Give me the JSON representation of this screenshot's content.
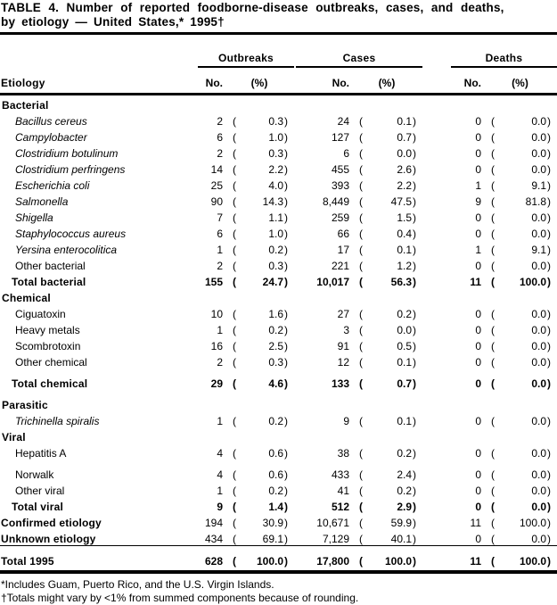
{
  "title": {
    "line1": "TABLE 4. Number of reported foodborne-disease outbreaks, cases, and deaths,",
    "line2": "by etiology — United States,* 1995†"
  },
  "table": {
    "etiology_header": "Etiology",
    "groups": [
      {
        "label": "Outbreaks"
      },
      {
        "label": "Cases"
      },
      {
        "label": "Deaths"
      }
    ],
    "subheaders": {
      "no": "No.",
      "pct": "(%)"
    },
    "rows": [
      {
        "type": "section",
        "label": "Bacterial"
      },
      {
        "type": "item",
        "italic": true,
        "label": "Bacillus cereus",
        "cells": [
          "2",
          "0.3",
          "24",
          "0.1",
          "0",
          "0.0"
        ]
      },
      {
        "type": "item",
        "italic": true,
        "label": "Campylobacter",
        "cells": [
          "6",
          "1.0",
          "127",
          "0.7",
          "0",
          "0.0"
        ]
      },
      {
        "type": "item",
        "italic": true,
        "label": "Clostridium botulinum",
        "cells": [
          "2",
          "0.3",
          "6",
          "0.0",
          "0",
          "0.0"
        ]
      },
      {
        "type": "item",
        "italic": true,
        "label": "Clostridium perfringens",
        "cells": [
          "14",
          "2.2",
          "455",
          "2.6",
          "0",
          "0.0"
        ]
      },
      {
        "type": "item",
        "italic": true,
        "label": "Escherichia coli",
        "cells": [
          "25",
          "4.0",
          "393",
          "2.2",
          "1",
          "9.1"
        ]
      },
      {
        "type": "item",
        "italic": true,
        "label": "Salmonella",
        "cells": [
          "90",
          "14.3",
          "8,449",
          "47.5",
          "9",
          "81.8"
        ]
      },
      {
        "type": "item",
        "italic": true,
        "label": "Shigella",
        "cells": [
          "7",
          "1.1",
          "259",
          "1.5",
          "0",
          "0.0"
        ]
      },
      {
        "type": "item",
        "italic": true,
        "label": "Staphylococcus aureus",
        "cells": [
          "6",
          "1.0",
          "66",
          "0.4",
          "0",
          "0.0"
        ]
      },
      {
        "type": "item",
        "italic": true,
        "label": "Yersina enterocolitica",
        "cells": [
          "1",
          "0.2",
          "17",
          "0.1",
          "1",
          "9.1"
        ]
      },
      {
        "type": "item",
        "label": "Other bacterial",
        "cells": [
          "2",
          "0.3",
          "221",
          "1.2",
          "0",
          "0.0"
        ]
      },
      {
        "type": "total",
        "label": "Total bacterial",
        "cells": [
          "155",
          "24.7",
          "10,017",
          "56.3",
          "11",
          "100.0"
        ]
      },
      {
        "type": "section",
        "label": "Chemical"
      },
      {
        "type": "item",
        "label": "Ciguatoxin",
        "cells": [
          "10",
          "1.6",
          "27",
          "0.2",
          "0",
          "0.0"
        ]
      },
      {
        "type": "item",
        "label": "Heavy metals",
        "cells": [
          "1",
          "0.2",
          "3",
          "0.0",
          "0",
          "0.0"
        ]
      },
      {
        "type": "item",
        "label": "Scombrotoxin",
        "cells": [
          "16",
          "2.5",
          "91",
          "0.5",
          "0",
          "0.0"
        ]
      },
      {
        "type": "item",
        "label": "Other chemical",
        "cells": [
          "2",
          "0.3",
          "12",
          "0.1",
          "0",
          "0.0"
        ]
      },
      {
        "type": "total",
        "gap": true,
        "label": "Total chemical",
        "cells": [
          "29",
          "4.6",
          "133",
          "0.7",
          "0",
          "0.0"
        ]
      },
      {
        "type": "section",
        "gap": true,
        "label": "Parasitic"
      },
      {
        "type": "item",
        "italic": true,
        "label": "Trichinella spiralis",
        "cells": [
          "1",
          "0.2",
          "9",
          "0.1",
          "0",
          "0.0"
        ]
      },
      {
        "type": "section",
        "label": "Viral"
      },
      {
        "type": "item",
        "label": "Hepatitis A",
        "cells": [
          "4",
          "0.6",
          "38",
          "0.2",
          "0",
          "0.0"
        ]
      },
      {
        "type": "item",
        "gap": true,
        "label": "Norwalk",
        "cells": [
          "4",
          "0.6",
          "433",
          "2.4",
          "0",
          "0.0"
        ]
      },
      {
        "type": "item",
        "label": "Other viral",
        "cells": [
          "1",
          "0.2",
          "41",
          "0.2",
          "0",
          "0.0"
        ]
      },
      {
        "type": "total",
        "label": "Total viral",
        "cells": [
          "9",
          "1.4",
          "512",
          "2.9",
          "0",
          "0.0"
        ]
      },
      {
        "type": "summary",
        "label": "Confirmed etiology",
        "cells": [
          "194",
          "30.9",
          "10,671",
          "59.9",
          "11",
          "100.0"
        ]
      },
      {
        "type": "summary",
        "label": "Unknown etiology",
        "cells": [
          "434",
          "69.1",
          "7,129",
          "40.1",
          "0",
          "0.0"
        ]
      },
      {
        "type": "grand",
        "label": "Total 1995",
        "cells": [
          "628",
          "100.0",
          "17,800",
          "100.0",
          "11",
          "100.0"
        ]
      }
    ]
  },
  "footnotes": {
    "f1": "*Includes Guam, Puerto Rico, and the U.S. Virgin Islands.",
    "f2": "†Totals might vary by <1% from summed components because of rounding."
  }
}
